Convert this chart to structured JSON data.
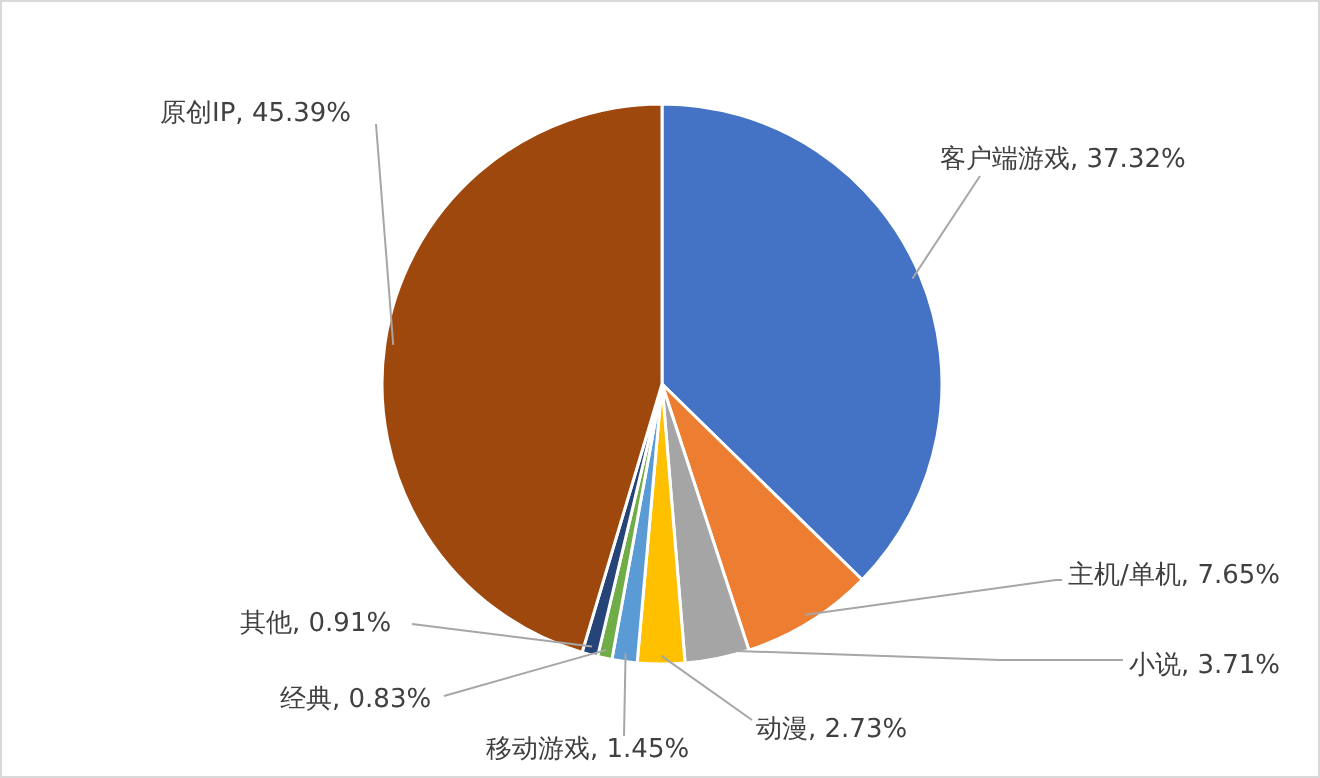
{
  "chart_data": {
    "type": "pie",
    "categories": [
      "客户端游戏",
      "主机/单机",
      "小说",
      "动漫",
      "移动游戏",
      "经典",
      "其他",
      "原创IP"
    ],
    "values": [
      37.32,
      7.65,
      3.71,
      2.73,
      1.45,
      0.83,
      0.91,
      45.39
    ],
    "colors": [
      "#4472c4",
      "#ed7d31",
      "#a5a5a5",
      "#ffc000",
      "#5b9bd5",
      "#70ad47",
      "#264478",
      "#9e480e"
    ],
    "value_labels": [
      "37.32%",
      "7.65%",
      "3.71%",
      "2.73%",
      "1.45%",
      "0.83%",
      "0.91%",
      "45.39%"
    ],
    "legend": false
  }
}
